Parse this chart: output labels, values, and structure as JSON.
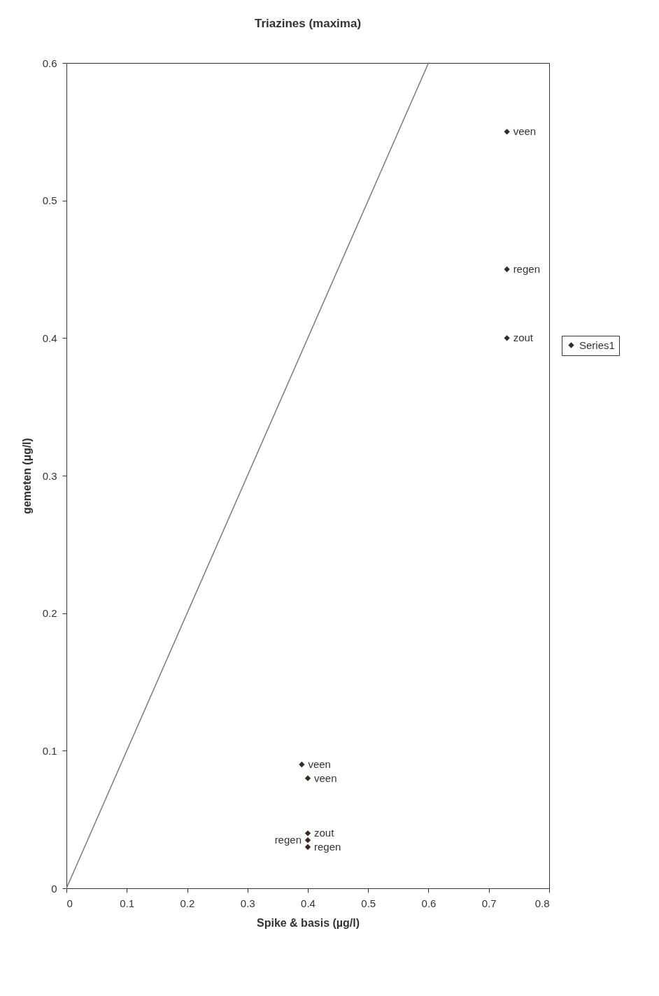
{
  "chart_data": {
    "type": "scatter",
    "title": "Triazines (maxima)",
    "xlabel": "Spike & basis (µg/l)",
    "ylabel": "gemeten (µg/l)",
    "xlim": [
      0,
      0.8
    ],
    "xticks": [
      0,
      0.1,
      0.2,
      0.3,
      0.4,
      0.5,
      0.6,
      0.7,
      0.8
    ],
    "ylim": [
      0,
      0.6
    ],
    "yticks": [
      0,
      0.1,
      0.2,
      0.3,
      0.4,
      0.5,
      0.6
    ],
    "grid": false,
    "legend": "right",
    "series": [
      {
        "type": "line",
        "color": "#7a7a7a",
        "x": [
          0,
          0.6
        ],
        "values": [
          0,
          0.6
        ],
        "line_style": "solid",
        "marker": "none"
      },
      {
        "name": "Series1",
        "color": "#3a2a22",
        "marker": "diamond",
        "x": [
          0.73,
          0.73,
          0.73,
          0.39,
          0.4,
          0.4,
          0.4,
          0.4
        ],
        "values": [
          0.55,
          0.45,
          0.4,
          0.09,
          0.08,
          0.04,
          0.035,
          0.03
        ]
      }
    ],
    "annotations": [
      {
        "text": "veen",
        "x": 0.73,
        "y": 0.55
      },
      {
        "text": "regen",
        "x": 0.73,
        "y": 0.45
      },
      {
        "text": "zout",
        "x": 0.73,
        "y": 0.4
      },
      {
        "text": "veen",
        "x": 0.39,
        "y": 0.09
      },
      {
        "text": "veen",
        "x": 0.4,
        "y": 0.08
      },
      {
        "text": "zout",
        "x": 0.4,
        "y": 0.04
      },
      {
        "text": "regen",
        "x": 0.4,
        "y": 0.035
      },
      {
        "text": "regen",
        "x": 0.4,
        "y": 0.03
      }
    ]
  }
}
